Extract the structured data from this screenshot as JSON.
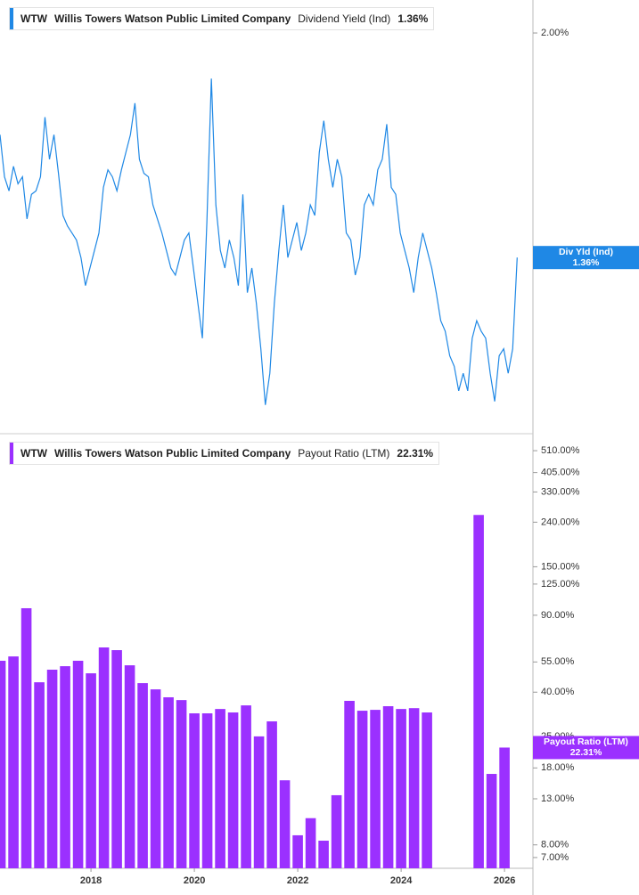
{
  "chart_data": [
    {
      "type": "line",
      "ticker": "WTW",
      "company": "Willis Towers Watson Public Limited Company",
      "metric_name": "Dividend Yield (Ind)",
      "metric_value": "1.36%",
      "badge_name": "Div Yld (Ind)",
      "badge_value": "1.36%",
      "color": "#1f88e5",
      "xlim": [
        2016.24,
        2026.55
      ],
      "ylim": [
        0.863,
        2.094
      ],
      "yticks": [
        {
          "value": 2,
          "label": "2.00%"
        }
      ],
      "x": [
        2016.24,
        2016.327,
        2016.414,
        2016.501,
        2016.588,
        2016.675,
        2016.762,
        2016.849,
        2016.936,
        2017.023,
        2017.11,
        2017.197,
        2017.284,
        2017.371,
        2017.458,
        2017.545,
        2017.632,
        2017.719,
        2017.806,
        2017.893,
        2017.98,
        2018.067,
        2018.154,
        2018.241,
        2018.328,
        2018.415,
        2018.502,
        2018.589,
        2018.676,
        2018.763,
        2018.85,
        2018.937,
        2019.024,
        2019.111,
        2019.198,
        2019.285,
        2019.372,
        2019.459,
        2019.546,
        2019.633,
        2019.72,
        2019.807,
        2019.894,
        2019.981,
        2020.068,
        2020.155,
        2020.242,
        2020.329,
        2020.416,
        2020.503,
        2020.59,
        2020.677,
        2020.764,
        2020.851,
        2020.938,
        2021.025,
        2021.112,
        2021.199,
        2021.286,
        2021.373,
        2021.46,
        2021.547,
        2021.634,
        2021.721,
        2021.808,
        2021.895,
        2021.982,
        2022.069,
        2022.156,
        2022.243,
        2022.33,
        2022.417,
        2022.504,
        2022.591,
        2022.678,
        2022.765,
        2022.852,
        2022.939,
        2023.026,
        2023.113,
        2023.2,
        2023.287,
        2023.374,
        2023.461,
        2023.548,
        2023.635,
        2023.722,
        2023.809,
        2023.896,
        2023.983,
        2024.07,
        2024.157,
        2024.244,
        2024.331,
        2024.418,
        2024.505,
        2024.592,
        2024.679,
        2024.766,
        2024.853,
        2024.94,
        2025.027,
        2025.114,
        2025.201,
        2025.288,
        2025.375,
        2025.462,
        2025.549,
        2025.636,
        2025.723,
        2025.81,
        2025.897,
        2025.984,
        2026.071,
        2026.158,
        2026.245
      ],
      "values": [
        1.71,
        1.59,
        1.55,
        1.62,
        1.57,
        1.59,
        1.47,
        1.54,
        1.55,
        1.59,
        1.76,
        1.64,
        1.71,
        1.6,
        1.48,
        1.45,
        1.43,
        1.41,
        1.36,
        1.28,
        1.33,
        1.38,
        1.43,
        1.56,
        1.61,
        1.59,
        1.55,
        1.61,
        1.66,
        1.71,
        1.8,
        1.64,
        1.6,
        1.59,
        1.51,
        1.47,
        1.43,
        1.38,
        1.33,
        1.31,
        1.36,
        1.41,
        1.43,
        1.33,
        1.23,
        1.13,
        1.46,
        1.87,
        1.51,
        1.38,
        1.33,
        1.41,
        1.36,
        1.28,
        1.54,
        1.26,
        1.33,
        1.23,
        1.1,
        0.94,
        1.03,
        1.23,
        1.38,
        1.51,
        1.36,
        1.41,
        1.46,
        1.38,
        1.43,
        1.51,
        1.48,
        1.66,
        1.75,
        1.64,
        1.56,
        1.64,
        1.59,
        1.43,
        1.41,
        1.31,
        1.36,
        1.51,
        1.54,
        1.51,
        1.61,
        1.64,
        1.74,
        1.56,
        1.54,
        1.43,
        1.38,
        1.33,
        1.26,
        1.36,
        1.43,
        1.38,
        1.33,
        1.26,
        1.18,
        1.15,
        1.08,
        1.05,
        0.98,
        1.03,
        0.98,
        1.13,
        1.18,
        1.15,
        1.13,
        1.03,
        0.95,
        1.08,
        1.1,
        1.03,
        1.1,
        1.36
      ]
    },
    {
      "type": "bar",
      "ticker": "WTW",
      "company": "Willis Towers Watson Public Limited Company",
      "metric_name": "Payout Ratio (LTM)",
      "metric_value": "22.31%",
      "badge_name": "Payout Ratio (LTM)",
      "badge_value": "22.31%",
      "color": "#9b30ff",
      "log_scale": true,
      "xlim": [
        2016.24,
        2026.55
      ],
      "xticks": [
        2018,
        2020,
        2022,
        2024,
        2026
      ],
      "ylim": [
        6.25,
        593
      ],
      "yticks": [
        {
          "value": 510,
          "label": "510.00%"
        },
        {
          "value": 405,
          "label": "405.00%"
        },
        {
          "value": 330,
          "label": "330.00%"
        },
        {
          "value": 240,
          "label": "240.00%"
        },
        {
          "value": 150,
          "label": "150.00%"
        },
        {
          "value": 125,
          "label": "125.00%"
        },
        {
          "value": 90,
          "label": "90.00%"
        },
        {
          "value": 55,
          "label": "55.00%"
        },
        {
          "value": 40,
          "label": "40.00%"
        },
        {
          "value": 25,
          "label": "25.00%"
        },
        {
          "value": 18,
          "label": "18.00%"
        },
        {
          "value": 13,
          "label": "13.00%"
        },
        {
          "value": 8,
          "label": "8.00%"
        },
        {
          "value": 7,
          "label": "7.00%"
        }
      ],
      "x": [
        2016.25,
        2016.5,
        2016.75,
        2017,
        2017.25,
        2017.5,
        2017.75,
        2018,
        2018.25,
        2018.5,
        2018.75,
        2019,
        2019.25,
        2019.5,
        2019.75,
        2020,
        2020.25,
        2020.5,
        2020.75,
        2021,
        2021.25,
        2021.5,
        2021.75,
        2022,
        2022.25,
        2022.5,
        2022.75,
        2023,
        2023.25,
        2023.5,
        2023.75,
        2024,
        2024.25,
        2024.5,
        2025.5,
        2025.75,
        2026
      ],
      "values": [
        55.7,
        58.3,
        96.9,
        44.4,
        50.7,
        52.6,
        55.7,
        48.8,
        64.1,
        62.3,
        53.1,
        44.0,
        41.2,
        37.9,
        36.8,
        32.0,
        32.0,
        33.5,
        32.3,
        34.8,
        25.1,
        29.4,
        15.8,
        8.85,
        10.6,
        8.36,
        13.5,
        36.5,
        32.9,
        33.2,
        34.5,
        33.5,
        33.8,
        32.3,
        259,
        16.9,
        22.31
      ]
    }
  ]
}
